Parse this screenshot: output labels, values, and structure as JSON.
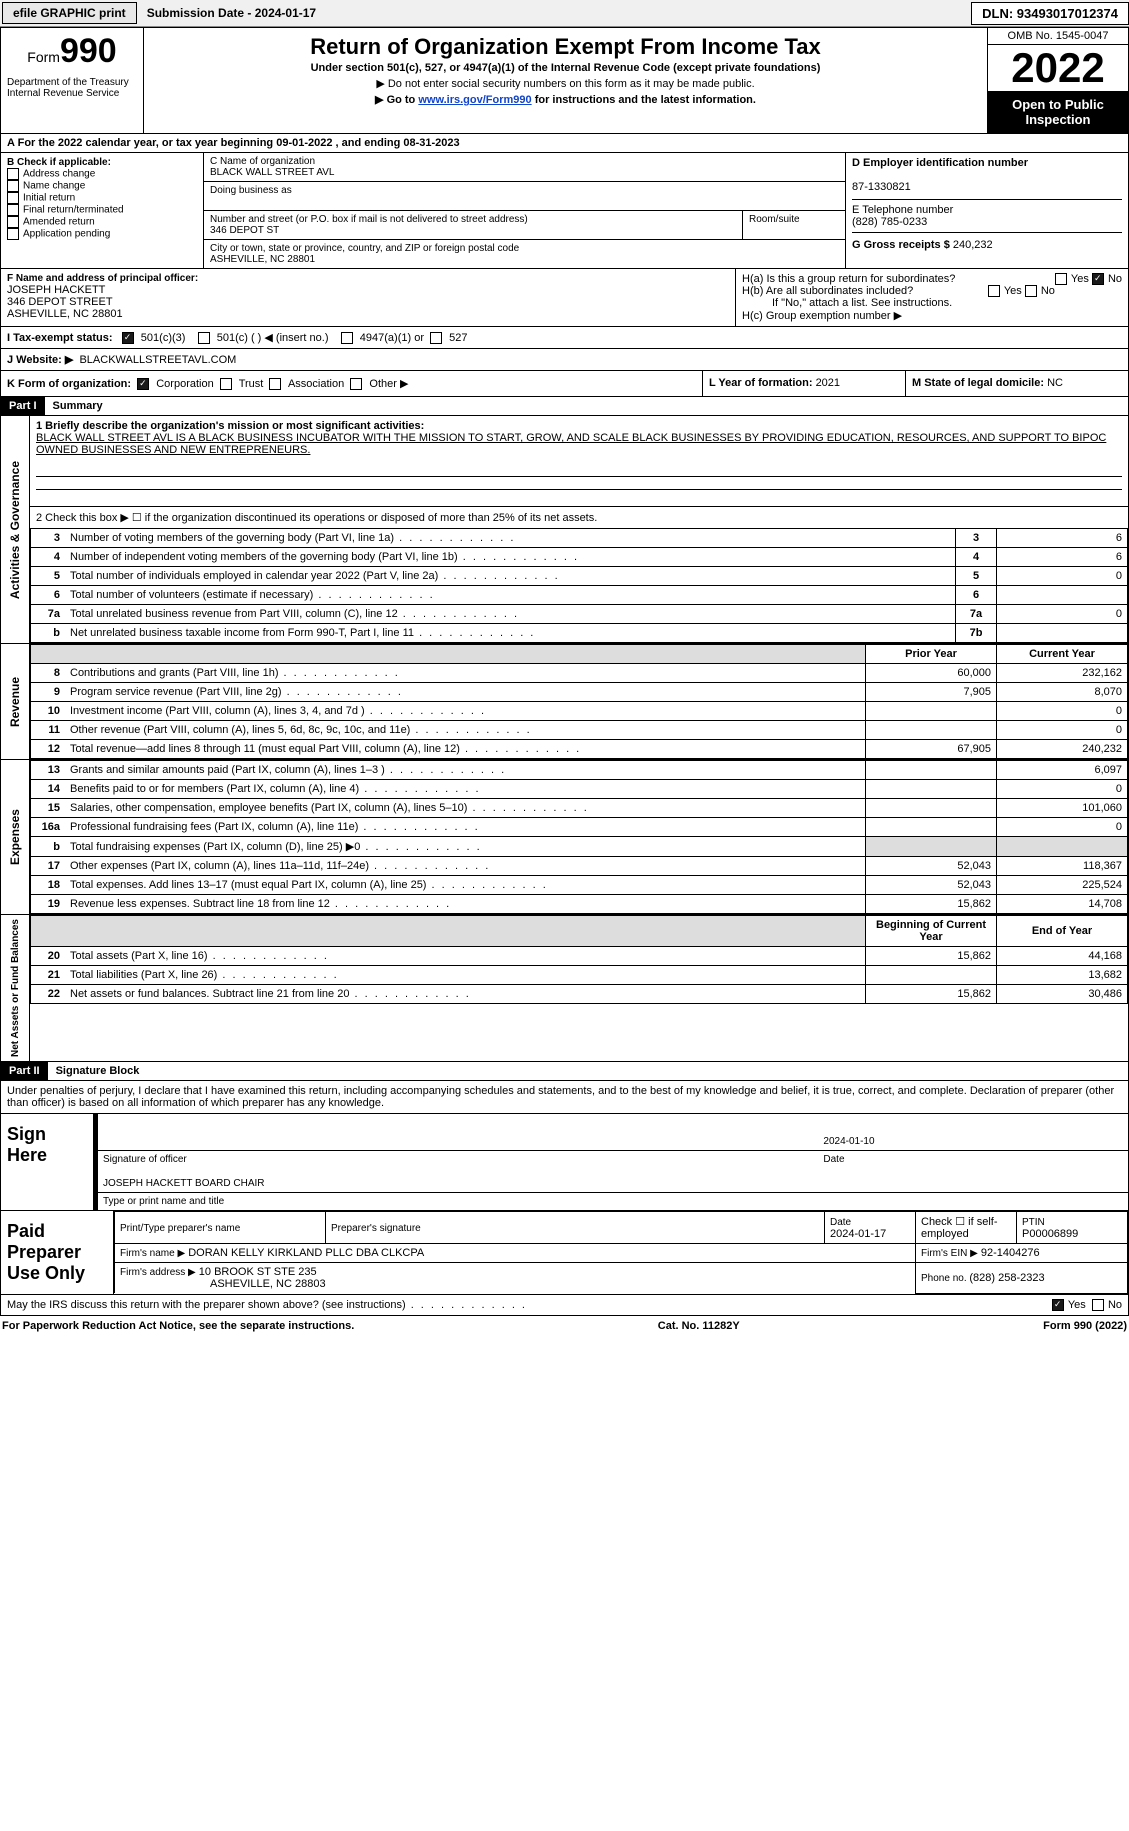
{
  "top": {
    "efile": "efile GRAPHIC print",
    "sub_label": "Submission Date - ",
    "sub_date": "2024-01-17",
    "dln": "DLN: 93493017012374"
  },
  "hdr": {
    "form_word": "Form",
    "form_num": "990",
    "dept": "Department of the Treasury\nInternal Revenue Service",
    "title": "Return of Organization Exempt From Income Tax",
    "sub": "Under section 501(c), 527, or 4947(a)(1) of the Internal Revenue Code (except private foundations)",
    "note1": "▶ Do not enter social security numbers on this form as it may be made public.",
    "note2_pre": "▶ Go to ",
    "note2_link": "www.irs.gov/Form990",
    "note2_post": " for instructions and the latest information.",
    "omb": "OMB No. 1545-0047",
    "year": "2022",
    "open": "Open to Public Inspection"
  },
  "A": {
    "line": "For the 2022 calendar year, or tax year beginning ",
    "begin": "09-01-2022",
    "mid": " , and ending ",
    "end": "08-31-2023"
  },
  "B": {
    "hdr": "B Check if applicable:",
    "items": [
      "Address change",
      "Name change",
      "Initial return",
      "Final return/terminated",
      "Amended return",
      "Application pending"
    ]
  },
  "C": {
    "name_lbl": "C Name of organization",
    "name": "BLACK WALL STREET AVL",
    "dba_lbl": "Doing business as",
    "addr_lbl": "Number and street (or P.O. box if mail is not delivered to street address)",
    "room_lbl": "Room/suite",
    "addr": "346 DEPOT ST",
    "city_lbl": "City or town, state or province, country, and ZIP or foreign postal code",
    "city": "ASHEVILLE, NC  28801"
  },
  "D": {
    "lbl": "D Employer identification number",
    "val": "87-1330821"
  },
  "E": {
    "lbl": "E Telephone number",
    "val": "(828) 785-0233"
  },
  "G": {
    "lbl": "G Gross receipts $",
    "val": "240,232"
  },
  "F": {
    "lbl": "F  Name and address of principal officer:",
    "name": "JOSEPH HACKETT",
    "addr": "346 DEPOT STREET",
    "city": "ASHEVILLE, NC  28801"
  },
  "H": {
    "a": "H(a)  Is this a group return for subordinates?",
    "b": "H(b)  Are all subordinates included?",
    "bnote": "If \"No,\" attach a list. See instructions.",
    "c": "H(c)  Group exemption number ▶",
    "yes": "Yes",
    "no": "No"
  },
  "I": {
    "lbl": "I   Tax-exempt status:",
    "o1": "501(c)(3)",
    "o2": "501(c) (  ) ◀ (insert no.)",
    "o3": "4947(a)(1) or",
    "o4": "527"
  },
  "J": {
    "lbl": "J  Website: ▶",
    "val": "BLACKWALLSTREETAVL.COM"
  },
  "K": {
    "lbl": "K Form of organization:",
    "o1": "Corporation",
    "o2": "Trust",
    "o3": "Association",
    "o4": "Other ▶"
  },
  "L": {
    "lbl": "L Year of formation: ",
    "val": "2021"
  },
  "M": {
    "lbl": "M State of legal domicile: ",
    "val": "NC"
  },
  "part1": {
    "badge": "Part I",
    "title": "Summary"
  },
  "mission_lbl": "1  Briefly describe the organization's mission or most significant activities:",
  "mission": "BLACK WALL STREET AVL IS A BLACK BUSINESS INCUBATOR WITH THE MISSION TO START, GROW, AND SCALE BLACK BUSINESSES BY PROVIDING EDUCATION, RESOURCES, AND SUPPORT TO BIPOC OWNED BUSINESSES AND NEW ENTREPRENEURS.",
  "line2": "2   Check this box ▶ ☐  if the organization discontinued its operations or disposed of more than 25% of its net assets.",
  "tabs": {
    "gov": "Activities & Governance",
    "rev": "Revenue",
    "exp": "Expenses",
    "net": "Net Assets or Fund Balances"
  },
  "gov": [
    {
      "n": "3",
      "d": "Number of voting members of the governing body (Part VI, line 1a)",
      "b": "3",
      "v": "6"
    },
    {
      "n": "4",
      "d": "Number of independent voting members of the governing body (Part VI, line 1b)",
      "b": "4",
      "v": "6"
    },
    {
      "n": "5",
      "d": "Total number of individuals employed in calendar year 2022 (Part V, line 2a)",
      "b": "5",
      "v": "0"
    },
    {
      "n": "6",
      "d": "Total number of volunteers (estimate if necessary)",
      "b": "6",
      "v": ""
    },
    {
      "n": "7a",
      "d": "Total unrelated business revenue from Part VIII, column (C), line 12",
      "b": "7a",
      "v": "0"
    },
    {
      "n": "b",
      "d": "Net unrelated business taxable income from Form 990-T, Part I, line 11",
      "b": "7b",
      "v": ""
    }
  ],
  "cols": {
    "prior": "Prior Year",
    "current": "Current Year",
    "begin": "Beginning of Current Year",
    "end": "End of Year"
  },
  "rev": [
    {
      "n": "8",
      "d": "Contributions and grants (Part VIII, line 1h)",
      "p": "60,000",
      "c": "232,162"
    },
    {
      "n": "9",
      "d": "Program service revenue (Part VIII, line 2g)",
      "p": "7,905",
      "c": "8,070"
    },
    {
      "n": "10",
      "d": "Investment income (Part VIII, column (A), lines 3, 4, and 7d )",
      "p": "",
      "c": "0"
    },
    {
      "n": "11",
      "d": "Other revenue (Part VIII, column (A), lines 5, 6d, 8c, 9c, 10c, and 11e)",
      "p": "",
      "c": "0"
    },
    {
      "n": "12",
      "d": "Total revenue—add lines 8 through 11 (must equal Part VIII, column (A), line 12)",
      "p": "67,905",
      "c": "240,232"
    }
  ],
  "exp": [
    {
      "n": "13",
      "d": "Grants and similar amounts paid (Part IX, column (A), lines 1–3 )",
      "p": "",
      "c": "6,097"
    },
    {
      "n": "14",
      "d": "Benefits paid to or for members (Part IX, column (A), line 4)",
      "p": "",
      "c": "0"
    },
    {
      "n": "15",
      "d": "Salaries, other compensation, employee benefits (Part IX, column (A), lines 5–10)",
      "p": "",
      "c": "101,060"
    },
    {
      "n": "16a",
      "d": "Professional fundraising fees (Part IX, column (A), line 11e)",
      "p": "",
      "c": "0"
    },
    {
      "n": "b",
      "d": "Total fundraising expenses (Part IX, column (D), line 25) ▶0",
      "p": "SHADE",
      "c": "SHADE"
    },
    {
      "n": "17",
      "d": "Other expenses (Part IX, column (A), lines 11a–11d, 11f–24e)",
      "p": "52,043",
      "c": "118,367"
    },
    {
      "n": "18",
      "d": "Total expenses. Add lines 13–17 (must equal Part IX, column (A), line 25)",
      "p": "52,043",
      "c": "225,524"
    },
    {
      "n": "19",
      "d": "Revenue less expenses. Subtract line 18 from line 12",
      "p": "15,862",
      "c": "14,708"
    }
  ],
  "net": [
    {
      "n": "20",
      "d": "Total assets (Part X, line 16)",
      "p": "15,862",
      "c": "44,168"
    },
    {
      "n": "21",
      "d": "Total liabilities (Part X, line 26)",
      "p": "",
      "c": "13,682"
    },
    {
      "n": "22",
      "d": "Net assets or fund balances. Subtract line 21 from line 20",
      "p": "15,862",
      "c": "30,486"
    }
  ],
  "part2": {
    "badge": "Part II",
    "title": "Signature Block"
  },
  "decl": "Under penalties of perjury, I declare that I have examined this return, including accompanying schedules and statements, and to the best of my knowledge and belief, it is true, correct, and complete. Declaration of preparer (other than officer) is based on all information of which preparer has any knowledge.",
  "sign": {
    "here": "Sign Here",
    "sig_lbl": "Signature of officer",
    "date": "2024-01-10",
    "date_lbl": "Date",
    "name": "JOSEPH HACKETT  BOARD CHAIR",
    "name_lbl": "Type or print name and title"
  },
  "prep": {
    "title": "Paid Preparer Use Only",
    "name_lbl": "Print/Type preparer's name",
    "sig_lbl": "Preparer's signature",
    "date_lbl": "Date",
    "date": "2024-01-17",
    "check": "Check ☐ if self-employed",
    "ptin_lbl": "PTIN",
    "ptin": "P00006899",
    "firm_lbl": "Firm's name    ▶",
    "firm": "DORAN KELLY KIRKLAND PLLC DBA CLKCPA",
    "ein_lbl": "Firm's EIN ▶",
    "ein": "92-1404276",
    "addr_lbl": "Firm's address ▶",
    "addr": "10 BROOK ST STE 235",
    "addr2": "ASHEVILLE, NC  28803",
    "ph_lbl": "Phone no. ",
    "ph": "(828) 258-2323"
  },
  "discuss": "May the IRS discuss this return with the preparer shown above? (see instructions)",
  "foot": {
    "l": "For Paperwork Reduction Act Notice, see the separate instructions.",
    "m": "Cat. No. 11282Y",
    "r": "Form 990 (2022)"
  }
}
